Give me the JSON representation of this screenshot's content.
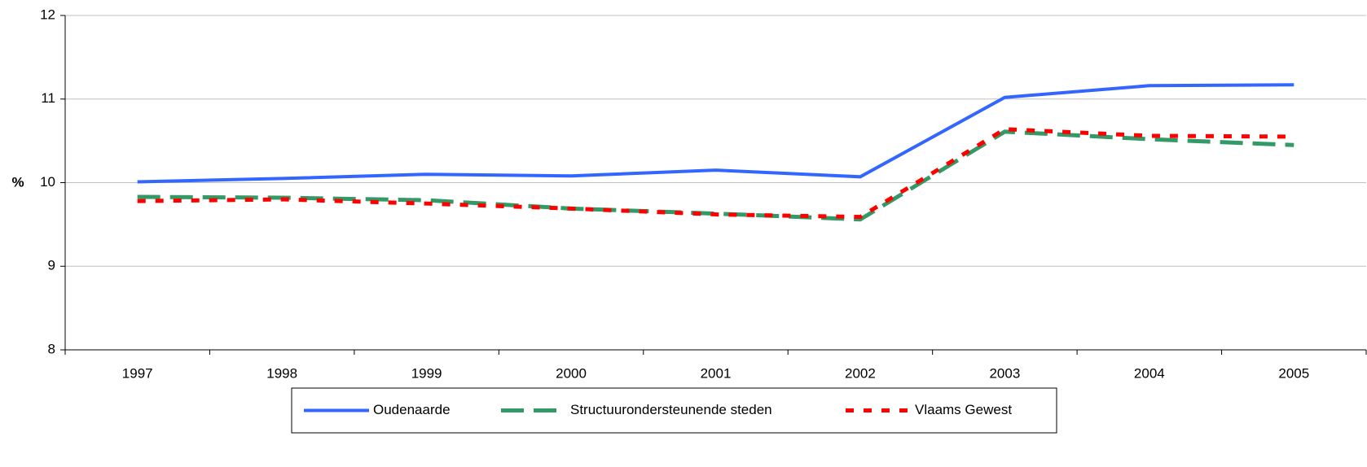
{
  "chart_data": {
    "type": "line",
    "y_label": "%",
    "categories": [
      "1997",
      "1998",
      "1999",
      "2000",
      "2001",
      "2002",
      "2003",
      "2004",
      "2005"
    ],
    "series": [
      {
        "name": "Oudenaarde",
        "color": "#3366ff",
        "dash": "solid",
        "values": [
          10.01,
          10.05,
          10.1,
          10.08,
          10.15,
          10.07,
          11.02,
          11.16,
          11.17
        ]
      },
      {
        "name": "Structuurondersteunende steden",
        "color": "#339966",
        "dash": "dashed",
        "values": [
          9.83,
          9.82,
          9.79,
          9.69,
          9.63,
          9.56,
          10.61,
          10.52,
          10.45
        ]
      },
      {
        "name": "Vlaams Gewest",
        "color": "#ff0000",
        "dash": "dotted",
        "values": [
          9.78,
          9.8,
          9.75,
          9.69,
          9.62,
          9.59,
          10.64,
          10.56,
          10.55
        ]
      }
    ],
    "ylim": [
      8,
      12
    ],
    "yticks": [
      8,
      9,
      10,
      11,
      12
    ],
    "grid": true,
    "legend": "bottom"
  }
}
